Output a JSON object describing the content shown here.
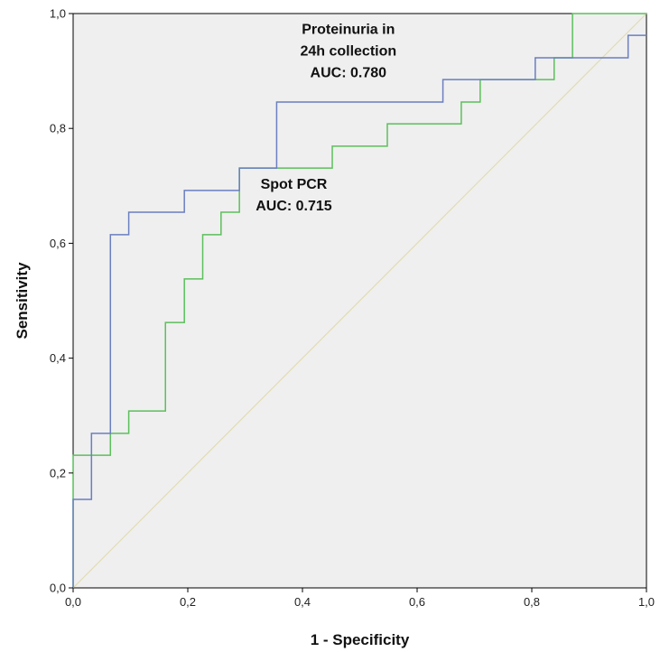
{
  "chart_data": {
    "type": "line",
    "xlabel": "1 - Specificity",
    "ylabel": "Sensitivity",
    "xlim": [
      0,
      1
    ],
    "ylim": [
      0,
      1
    ],
    "x_ticks": [
      "0,0",
      "0,2",
      "0,4",
      "0,6",
      "0,8",
      "1,0"
    ],
    "y_ticks": [
      "0,0",
      "0,2",
      "0,4",
      "0,6",
      "0,8",
      "1,0"
    ],
    "grid": false,
    "colors": {
      "plot_background": "#efefef",
      "series_blue": "#6a7fc0",
      "series_green": "#5cbf5c",
      "reference_line": "#e2dcb2"
    },
    "series": [
      {
        "x": [
          0,
          0,
          0.032,
          0.032,
          0.065,
          0.065,
          0.097,
          0.097,
          0.194,
          0.194,
          0.29,
          0.29,
          0.355,
          0.355,
          0.645,
          0.645,
          0.774,
          0.774,
          0.806,
          0.806,
          0.968,
          0.968,
          1.0
        ],
        "y": [
          0,
          0.154,
          0.154,
          0.269,
          0.269,
          0.615,
          0.615,
          0.654,
          0.654,
          0.692,
          0.692,
          0.731,
          0.731,
          0.846,
          0.846,
          0.885,
          0.885,
          0.885,
          0.885,
          0.923,
          0.923,
          0.962,
          0.962
        ]
      },
      {
        "x": [
          0,
          0,
          0.065,
          0.065,
          0.097,
          0.097,
          0.161,
          0.161,
          0.194,
          0.194,
          0.226,
          0.226,
          0.258,
          0.258,
          0.29,
          0.29,
          0.452,
          0.452,
          0.484,
          0.484,
          0.548,
          0.548,
          0.677,
          0.677,
          0.71,
          0.71,
          0.839,
          0.839,
          0.871,
          0.871,
          1.0
        ],
        "y": [
          0,
          0.231,
          0.231,
          0.269,
          0.269,
          0.308,
          0.308,
          0.462,
          0.462,
          0.538,
          0.538,
          0.615,
          0.615,
          0.654,
          0.654,
          0.731,
          0.731,
          0.769,
          0.769,
          0.769,
          0.769,
          0.808,
          0.808,
          0.846,
          0.846,
          0.885,
          0.885,
          0.923,
          0.923,
          1.0,
          1.0
        ]
      },
      {
        "x": [
          0,
          1
        ],
        "y": [
          0,
          1
        ]
      }
    ],
    "annotations": [
      {
        "lines": [
          "Proteinuria in",
          "24h collection",
          "AUC: 0.780"
        ],
        "x": 0.48,
        "y": 0.965
      },
      {
        "lines": [
          "Spot PCR",
          "AUC: 0.715"
        ],
        "x": 0.385,
        "y": 0.695
      }
    ]
  }
}
